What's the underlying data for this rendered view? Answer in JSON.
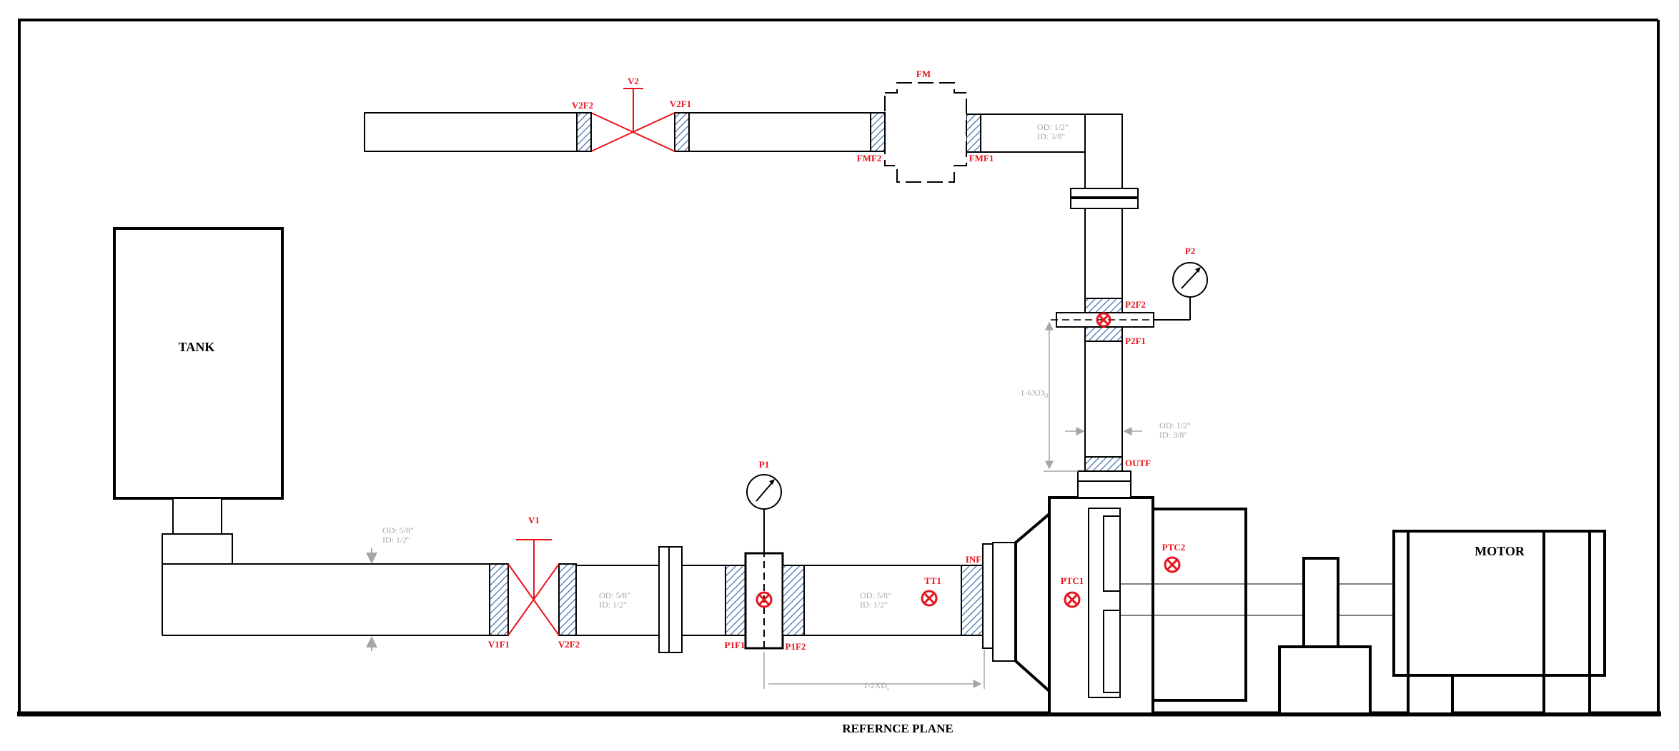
{
  "colors": {
    "line": "#000000",
    "tag": "#e8141c",
    "dimension": "#a6a6a6",
    "flange_hatch": "#2f5fa8"
  },
  "labels": {
    "tank": "TANK",
    "motor": "MOTOR",
    "reference_plane": "REFERNCE PLANE",
    "v1": "V1",
    "v1f1": "V1F1",
    "v1f2": "V2F2",
    "v2": "V2",
    "v2f2": "V2F2",
    "v2f1": "V2F1",
    "fm": "FM",
    "fmf2": "FMF2",
    "fmf1": "FMF1",
    "p1": "P1",
    "p1f1": "P1F1",
    "p1f2": "P1F2",
    "p2": "P2",
    "p2f2": "P2F2",
    "p2f1": "P2F1",
    "tt1": "TT1",
    "inf": "INF",
    "outf": "OUTF",
    "ptc1": "PTC1",
    "ptc2": "PTC2"
  },
  "dimensions": {
    "suction_od": "OD: 5/8\"",
    "suction_id": "ID:  1/2\"",
    "mid_od": "OD: 5/8\"",
    "mid_id": "ID:  1/2\"",
    "inlet_od": "OD: 5/8\"",
    "inlet_id": "ID:  1/2\"",
    "vertical_od": "OD: 1/2\"",
    "vertical_id": "ID:  3/8\"",
    "top_od": "OD: 1/2\"",
    "top_id": "ID:  3/8\"",
    "vertical_length": "1-6XD",
    "vertical_length_sub": "D",
    "horizontal_length": "1-2XD",
    "horizontal_length_sub": "s"
  }
}
